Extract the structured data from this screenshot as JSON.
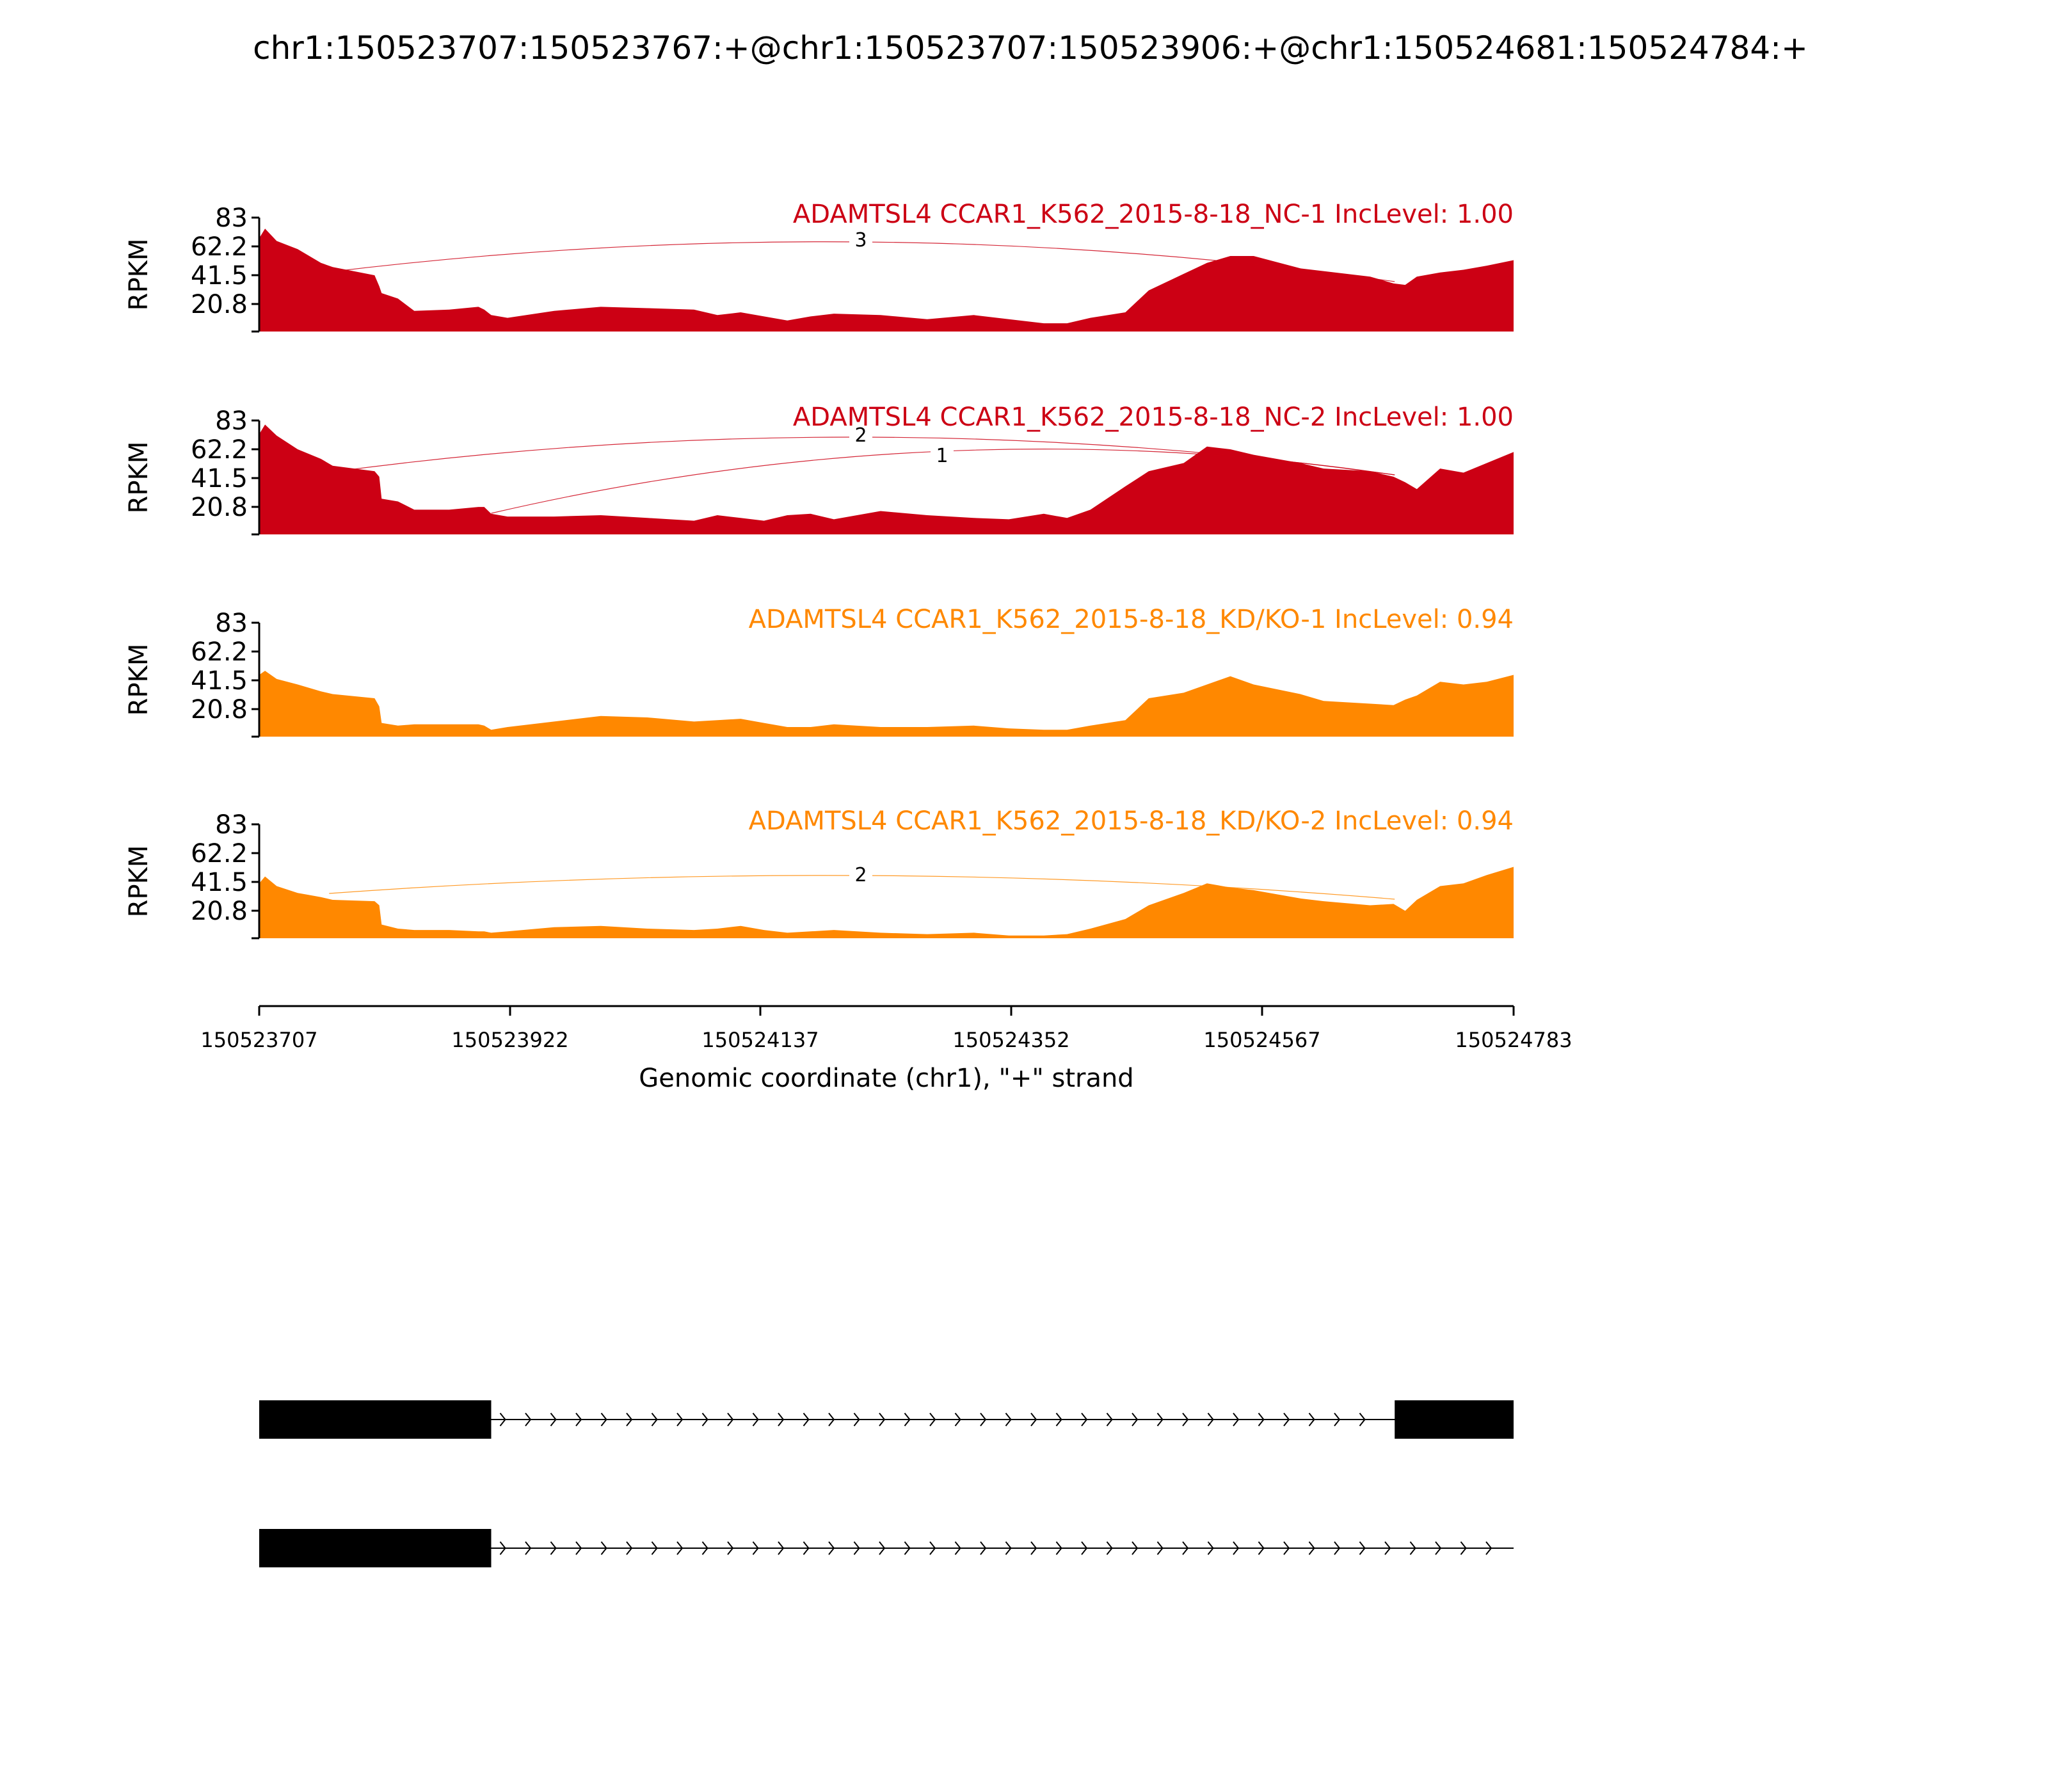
{
  "chart_data": {
    "type": "area",
    "title": "chr1:150523707:150523767:+@chr1:150523707:150523906:+@chr1:150524681:150524784:+",
    "ylabel": "RPKM",
    "xlabel": "Genomic coordinate (chr1), \"+\" strand",
    "ylim": [
      0,
      83
    ],
    "y_ticks": [
      "83",
      "62.2",
      "41.5",
      "20.8"
    ],
    "xlim": [
      150523707,
      150524783
    ],
    "x_ticks": [
      "150523707",
      "150523922",
      "150524137",
      "150524352",
      "150524567",
      "150524783"
    ],
    "profile_x": [
      150523707,
      150523712,
      150523722,
      150523740,
      150523760,
      150523770,
      150523806,
      150523810,
      150523812,
      150523826,
      150523840,
      150523870,
      150523895,
      150523900,
      150523906,
      150523920,
      150523960,
      150524000,
      150524040,
      150524080,
      150524100,
      150524120,
      150524140,
      150524160,
      150524180,
      150524200,
      150524240,
      150524280,
      150524320,
      150524350,
      150524380,
      150524400,
      150524420,
      150524450,
      150524470,
      150524500,
      150524520,
      150524540,
      150524560,
      150524600,
      150524620,
      150524660,
      150524680,
      150524690,
      150524700,
      150524720,
      150524740,
      150524760,
      150524783
    ],
    "series": [
      {
        "name": "ADAMTSL4 CCAR1_K562_2015-8-18_NC-1 IncLevel: 1.00",
        "color": "#cc0014",
        "values": [
          68,
          75,
          66,
          60,
          50,
          47,
          41,
          33,
          28,
          24,
          15,
          16,
          18,
          16,
          12,
          10,
          15,
          18,
          17,
          16,
          12,
          14,
          11,
          8,
          11,
          13,
          12,
          9,
          12,
          9,
          6,
          6,
          10,
          14,
          30,
          42,
          50,
          55,
          55,
          46,
          44,
          40,
          35,
          34,
          40,
          43,
          45,
          48,
          52
        ],
        "junctions": [
          {
            "label": "3"
          }
        ]
      },
      {
        "name": "ADAMTSL4 CCAR1_K562_2015-8-18_NC-2 IncLevel: 1.00",
        "color": "#cc0014",
        "values": [
          73,
          80,
          72,
          62,
          55,
          50,
          46,
          42,
          26,
          24,
          18,
          18,
          20,
          20,
          15,
          13,
          13,
          14,
          12,
          10,
          14,
          12,
          10,
          14,
          15,
          11,
          17,
          14,
          12,
          11,
          15,
          12,
          18,
          35,
          46,
          52,
          64,
          62,
          58,
          52,
          48,
          46,
          42,
          38,
          33,
          48,
          45,
          52,
          60
        ],
        "junctions": [
          {
            "label": "2"
          },
          {
            "label": "1"
          }
        ]
      },
      {
        "name": "ADAMTSL4 CCAR1_K562_2015-8-18_KD/KO-1 IncLevel: 0.94",
        "color": "#ff8800",
        "values": [
          45,
          48,
          42,
          38,
          33,
          31,
          28,
          22,
          10,
          8,
          9,
          9,
          9,
          8,
          5,
          7,
          11,
          15,
          14,
          11,
          12,
          13,
          10,
          7,
          7,
          9,
          7,
          7,
          8,
          6,
          5,
          5,
          8,
          12,
          28,
          32,
          38,
          44,
          38,
          31,
          26,
          24,
          23,
          27,
          30,
          40,
          38,
          40,
          45
        ],
        "junctions": []
      },
      {
        "name": "ADAMTSL4 CCAR1_K562_2015-8-18_KD/KO-2 IncLevel: 0.94",
        "color": "#ff8800",
        "values": [
          40,
          45,
          38,
          33,
          30,
          28,
          27,
          24,
          10,
          7,
          6,
          6,
          5,
          5,
          4,
          5,
          8,
          9,
          7,
          6,
          7,
          9,
          6,
          4,
          5,
          6,
          4,
          3,
          4,
          2,
          2,
          3,
          7,
          14,
          24,
          33,
          40,
          37,
          35,
          29,
          27,
          24,
          25,
          20,
          28,
          38,
          40,
          46,
          52
        ],
        "junctions": [
          {
            "label": "2"
          }
        ]
      }
    ],
    "gene_models": [
      {
        "exons": [
          [
            150523707,
            150523906
          ],
          [
            150524681,
            150524783
          ]
        ],
        "strand": "+"
      },
      {
        "exons": [
          [
            150523707,
            150523906
          ]
        ],
        "strand": "+"
      }
    ]
  }
}
